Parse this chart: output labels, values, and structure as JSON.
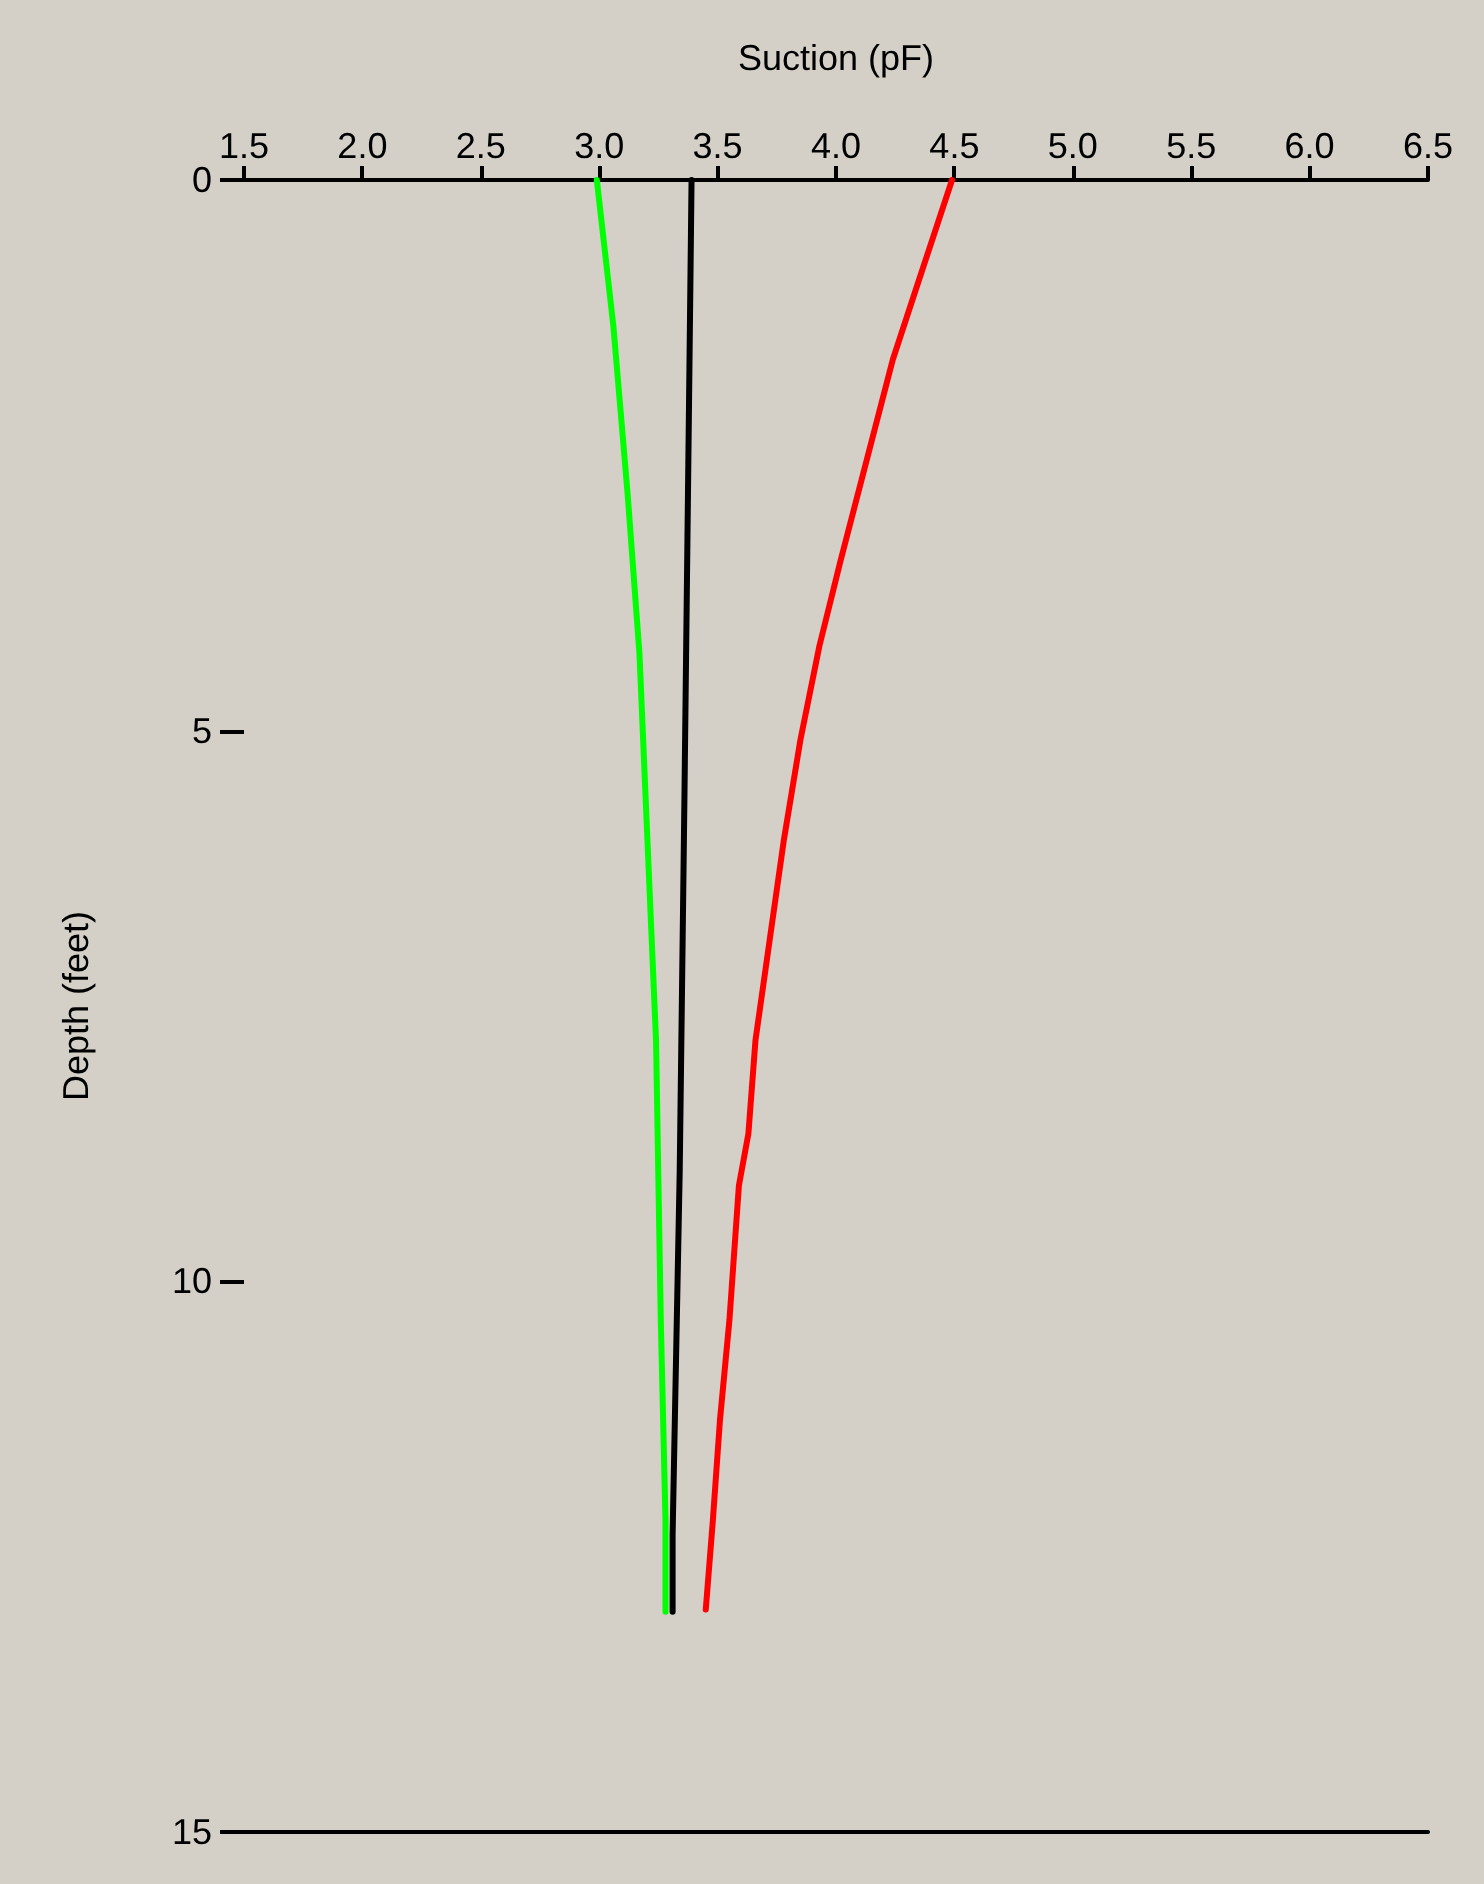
{
  "chart_data": {
    "type": "line",
    "xlabel": "Suction (pF)",
    "ylabel": "Depth (feet)",
    "xlim": [
      1.5,
      6.5
    ],
    "ylim": [
      15,
      0
    ],
    "xticks": [
      1.5,
      {
        "value": 2,
        "label": "2.0"
      },
      2.5,
      {
        "value": 3,
        "label": "3.0"
      },
      3.5,
      {
        "value": 4,
        "label": "4.0"
      },
      4.5,
      {
        "value": 5,
        "label": "5.0"
      },
      5.5,
      {
        "value": 6,
        "label": "6.0"
      },
      6.5
    ],
    "yticks": [
      0,
      5,
      10,
      15
    ],
    "grid": false,
    "marker": "none",
    "line_style": "solid",
    "series": [
      {
        "color": "#00ff00",
        "x": [
          2.99,
          3.06,
          3.12,
          3.17,
          3.2,
          3.24,
          3.26,
          3.28,
          3.28
        ],
        "values": [
          0,
          1.33,
          2.85,
          4.3,
          5.81,
          7.81,
          10.35,
          12.17,
          13
        ]
      },
      {
        "color": "#000000",
        "x": [
          3.39,
          3.38,
          3.36,
          3.34,
          3.31,
          3.31
        ],
        "values": [
          0,
          1.9,
          5.6,
          9,
          12.3,
          13
        ]
      },
      {
        "color": "#ff0000",
        "x": [
          4.49,
          4.35,
          4.24,
          4.13,
          4.02,
          3.93,
          3.85,
          3.78,
          3.72,
          3.66,
          3.63,
          3.59,
          3.55,
          3.51,
          3.48,
          3.45
        ],
        "values": [
          0,
          0.91,
          1.63,
          2.54,
          3.45,
          4.23,
          5.08,
          5.99,
          6.9,
          7.81,
          8.66,
          9.13,
          10.35,
          11.26,
          12.17,
          12.98
        ]
      }
    ]
  }
}
